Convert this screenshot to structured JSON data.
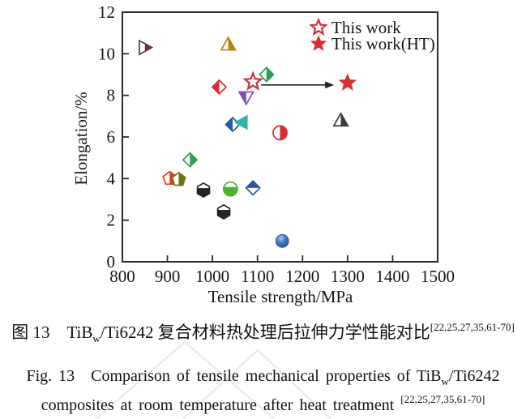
{
  "figure": {
    "caption_cn": {
      "prefix": "图 13　TiB",
      "sub": "w",
      "middle": "/Ti6242 复合材料热处理后拉伸力学性能对比",
      "sup": "[22,25,27,35,61-70]"
    },
    "caption_en_line1": {
      "prefix": "Fig. 13　Comparison of tensile mechanical properties of TiB",
      "sub": "w",
      "suffix": "/Ti6242"
    },
    "caption_en_line2": {
      "text": "composites at room temperature after heat treatment ",
      "sup": "[22,25,27,35,61-70]"
    }
  },
  "chart_data": {
    "type": "scatter",
    "title": "",
    "xlabel": "Tensile strength/MPa",
    "ylabel": "Elongation/%",
    "xlim": [
      800,
      1500
    ],
    "ylim": [
      0,
      12
    ],
    "xticks": [
      800,
      900,
      1000,
      1100,
      1200,
      1300,
      1400,
      1500
    ],
    "yticks": [
      0,
      2,
      4,
      6,
      8,
      10,
      12
    ],
    "grid": false,
    "legend_position": "top-right-inside",
    "legend": [
      {
        "label": "This work",
        "marker": "star",
        "fill": "open",
        "color": "#d62e35"
      },
      {
        "label": "This work(HT)",
        "marker": "star",
        "fill": "solid",
        "color": "#d62e35"
      }
    ],
    "points": [
      {
        "x": 850,
        "y": 10.3,
        "shape": "triangle-right",
        "fill": "half-right",
        "color": "#5b3848"
      },
      {
        "x": 1035,
        "y": 10.45,
        "shape": "triangle-up",
        "fill": "half-right",
        "color": "#b8860b"
      },
      {
        "x": 1120,
        "y": 9.0,
        "shape": "diamond",
        "fill": "half-right",
        "color": "#2aa14a"
      },
      {
        "x": 1015,
        "y": 8.4,
        "shape": "diamond",
        "fill": "half-left",
        "color": "#d62e35"
      },
      {
        "x": 1075,
        "y": 7.9,
        "shape": "triangle-down",
        "fill": "half-left",
        "color": "#7e4fc1"
      },
      {
        "x": 1045,
        "y": 6.6,
        "shape": "diamond",
        "fill": "half-left",
        "color": "#2a57a5"
      },
      {
        "x": 1065,
        "y": 6.7,
        "shape": "triangle-left",
        "fill": "solid",
        "color": "#2fb2ac"
      },
      {
        "x": 1150,
        "y": 6.2,
        "shape": "circle",
        "fill": "half-right",
        "color": "#d62e35"
      },
      {
        "x": 1285,
        "y": 6.8,
        "shape": "triangle-up",
        "fill": "half-right",
        "color": "#3d3d3d"
      },
      {
        "x": 950,
        "y": 4.9,
        "shape": "diamond",
        "fill": "half-right",
        "color": "#2aa14a"
      },
      {
        "x": 905,
        "y": 4.0,
        "shape": "pentagon",
        "fill": "half-right",
        "color": "#e2391b"
      },
      {
        "x": 925,
        "y": 3.95,
        "shape": "pentagon",
        "fill": "half-right",
        "color": "#717217"
      },
      {
        "x": 980,
        "y": 3.45,
        "shape": "hexagon",
        "fill": "half-bottom",
        "color": "#242424"
      },
      {
        "x": 1040,
        "y": 3.5,
        "shape": "circle",
        "fill": "half-bottom",
        "color": "#4eb22b"
      },
      {
        "x": 1090,
        "y": 3.55,
        "shape": "diamond",
        "fill": "half-top",
        "color": "#2a57a5"
      },
      {
        "x": 1025,
        "y": 2.4,
        "shape": "hexagon",
        "fill": "half-bottom",
        "color": "#242424"
      },
      {
        "x": 1155,
        "y": 1.0,
        "shape": "sphere",
        "fill": "sphere",
        "color": "#3e78bb"
      },
      {
        "x": 1090,
        "y": 8.65,
        "shape": "star",
        "fill": "open",
        "color": "#d62e35",
        "label": "This work"
      },
      {
        "x": 1300,
        "y": 8.6,
        "shape": "star",
        "fill": "solid",
        "color": "#d62e35",
        "label": "This work(HT)"
      }
    ],
    "annotation_arrow": {
      "x1": 1108,
      "x2": 1270,
      "y": 8.5
    }
  },
  "colors": {
    "accent_red": "#d62e35",
    "axis": "#2b2b2b",
    "watermark_green": "#cfe7cc"
  }
}
